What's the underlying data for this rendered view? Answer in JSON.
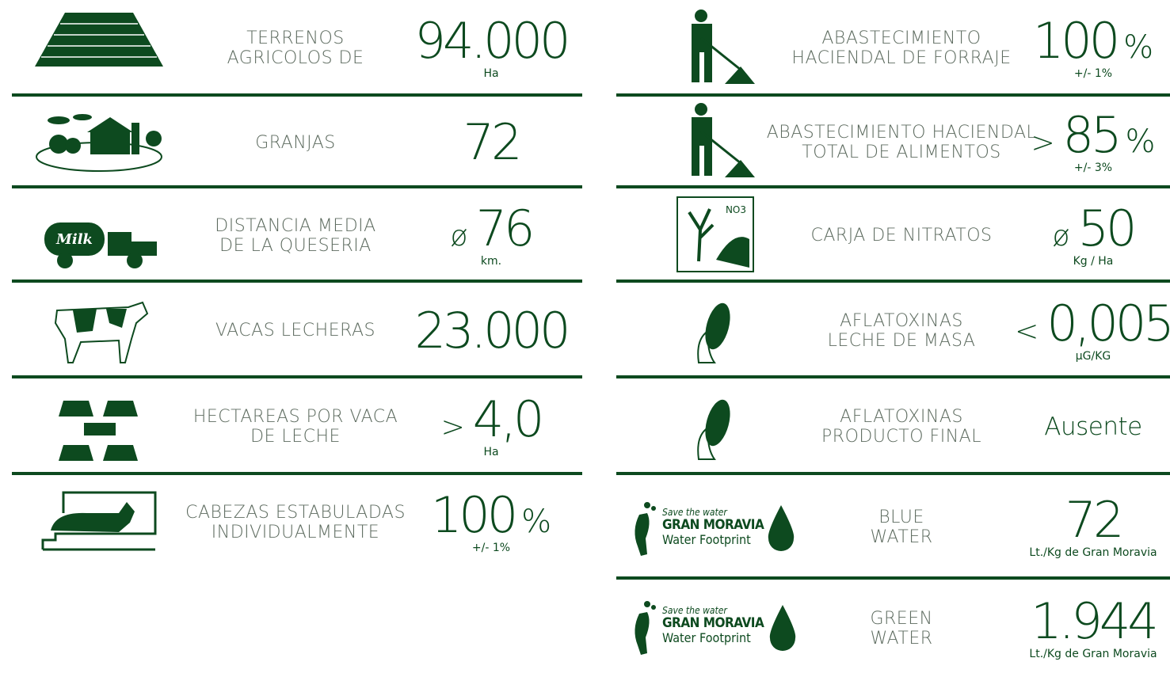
{
  "left": [
    {
      "label": [
        "TERRENOS",
        "AGRICOLOS DE"
      ],
      "value": "94.000",
      "note": "Ha"
    },
    {
      "label": [
        "GRANJAS"
      ],
      "value": "72"
    },
    {
      "label": [
        "DISTANCIA MEDIA",
        "DE LA QUESERIA"
      ],
      "prefix": "ø",
      "value": "76",
      "note": "km."
    },
    {
      "label": [
        "VACAS LECHERAS"
      ],
      "value": "23.000"
    },
    {
      "label": [
        "HECTAREAS POR VACA",
        "DE LECHE"
      ],
      "prefix": ">",
      "value": "4,0",
      "note": "Ha"
    },
    {
      "label": [
        "CABEZAS ESTABULADAS",
        "INDIVIDUALMENTE"
      ],
      "value": "100",
      "suffix": "%",
      "note": "+/- 1%"
    }
  ],
  "right": [
    {
      "label": [
        "ABASTECIMIENTO",
        "HACIENDAL DE FORRAJE"
      ],
      "value": "100",
      "suffix": "%",
      "note": "+/- 1%"
    },
    {
      "label": [
        "ABASTECIMIENTO HACIENDAL",
        "TOTAL DE ALIMENTOS"
      ],
      "prefix": ">",
      "value": "85",
      "suffix": "%",
      "note": "+/- 3%"
    },
    {
      "label": [
        "CARJA DE NITRATOS"
      ],
      "prefix": "ø",
      "value": "50",
      "note": "Kg / Ha",
      "icon_text": "NO3"
    },
    {
      "label": [
        "AFLATOXINAS",
        "LECHE DE MASA"
      ],
      "prefix": "<",
      "value": "0,005",
      "note": "µG/KG"
    },
    {
      "label": [
        "AFLATOXINAS",
        "PRODUCTO FINAL"
      ],
      "value": "Ausente"
    },
    {
      "label": [
        "BLUE",
        "WATER"
      ],
      "value": "72",
      "note": "Lt./Kg de Gran Moravia",
      "logo": {
        "tagline": "Save the water",
        "brand": "GRAN MORAVIA",
        "caption": "Water Footprint"
      }
    },
    {
      "label": [
        "GREEN",
        "WATER"
      ],
      "value": "1.944",
      "note": "Lt./Kg de Gran Moravia",
      "logo": {
        "tagline": "Save the water",
        "brand": "GRAN MORAVIA",
        "caption": "Water Footprint"
      }
    }
  ]
}
